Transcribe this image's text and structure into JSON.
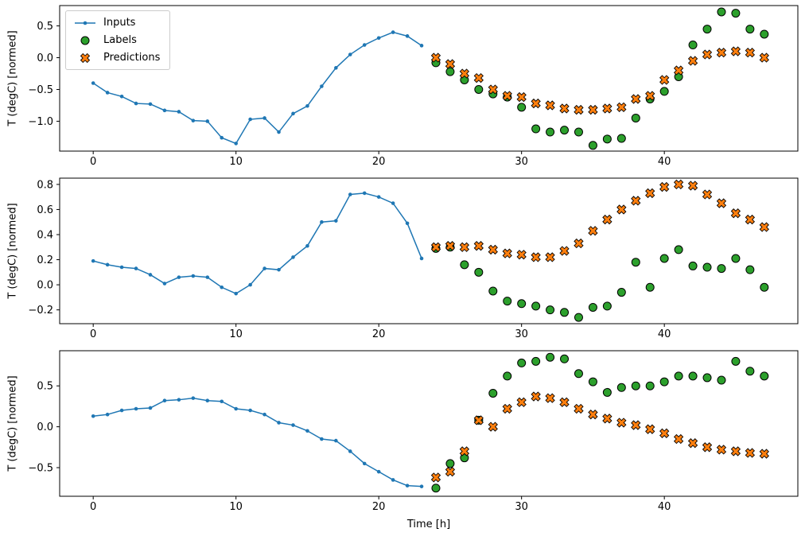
{
  "chart_data": [
    {
      "type": "line",
      "title": "",
      "ylabel": "T (degC) [normed]",
      "xlabel": "",
      "xlim": [
        -2.35,
        49.35
      ],
      "ylim": [
        -1.47,
        0.82
      ],
      "xticks": [
        0,
        10,
        20,
        30,
        40
      ],
      "yticks": [
        0.5,
        0.0,
        -0.5,
        -1.0
      ],
      "grid": false,
      "legend": {
        "position": "upper left",
        "visible": true
      },
      "series": [
        {
          "name": "Inputs",
          "kind": "line",
          "marker": "dot",
          "color": "#1f77b4",
          "x": [
            0,
            1,
            2,
            3,
            4,
            5,
            6,
            7,
            8,
            9,
            10,
            11,
            12,
            13,
            14,
            15,
            16,
            17,
            18,
            19,
            20,
            21,
            22,
            23
          ],
          "y": [
            -0.4,
            -0.55,
            -0.61,
            -0.72,
            -0.73,
            -0.83,
            -0.85,
            -0.99,
            -1.0,
            -1.26,
            -1.35,
            -0.97,
            -0.95,
            -1.17,
            -0.88,
            -0.76,
            -0.45,
            -0.16,
            0.05,
            0.2,
            0.31,
            0.4,
            0.34,
            0.19
          ]
        },
        {
          "name": "Labels",
          "kind": "scatter",
          "marker": "circle",
          "color": "#2ca02c",
          "edge": "#000000",
          "x": [
            24,
            25,
            26,
            27,
            28,
            29,
            30,
            31,
            32,
            33,
            34,
            35,
            36,
            37,
            38,
            39,
            40,
            41,
            42,
            43,
            44,
            45,
            46,
            47
          ],
          "y": [
            -0.08,
            -0.22,
            -0.35,
            -0.5,
            -0.57,
            -0.62,
            -0.78,
            -1.12,
            -1.17,
            -1.14,
            -1.17,
            -1.38,
            -1.28,
            -1.27,
            -0.95,
            -0.65,
            -0.53,
            -0.3,
            0.2,
            0.45,
            0.72,
            0.7,
            0.45,
            0.37
          ]
        },
        {
          "name": "Predictions",
          "kind": "scatter",
          "marker": "X",
          "color": "#ff7f0e",
          "edge": "#000000",
          "x": [
            24,
            25,
            26,
            27,
            28,
            29,
            30,
            31,
            32,
            33,
            34,
            35,
            36,
            37,
            38,
            39,
            40,
            41,
            42,
            43,
            44,
            45,
            46,
            47
          ],
          "y": [
            0.0,
            -0.1,
            -0.25,
            -0.32,
            -0.5,
            -0.6,
            -0.62,
            -0.72,
            -0.75,
            -0.8,
            -0.82,
            -0.82,
            -0.8,
            -0.78,
            -0.65,
            -0.6,
            -0.35,
            -0.2,
            -0.05,
            0.05,
            0.08,
            0.1,
            0.08,
            0.0
          ]
        }
      ]
    },
    {
      "type": "line",
      "title": "",
      "ylabel": "T (degC) [normed]",
      "xlabel": "",
      "xlim": [
        -2.35,
        49.35
      ],
      "ylim": [
        -0.31,
        0.85
      ],
      "xticks": [
        0,
        10,
        20,
        30,
        40
      ],
      "yticks": [
        0.8,
        0.6,
        0.4,
        0.2,
        0.0,
        -0.2
      ],
      "grid": false,
      "legend": {
        "position": "none",
        "visible": false
      },
      "series": [
        {
          "name": "Inputs",
          "kind": "line",
          "marker": "dot",
          "color": "#1f77b4",
          "x": [
            0,
            1,
            2,
            3,
            4,
            5,
            6,
            7,
            8,
            9,
            10,
            11,
            12,
            13,
            14,
            15,
            16,
            17,
            18,
            19,
            20,
            21,
            22,
            23
          ],
          "y": [
            0.19,
            0.16,
            0.14,
            0.13,
            0.08,
            0.01,
            0.06,
            0.07,
            0.06,
            -0.02,
            -0.07,
            0.0,
            0.13,
            0.12,
            0.22,
            0.31,
            0.5,
            0.51,
            0.72,
            0.73,
            0.7,
            0.65,
            0.49,
            0.21
          ]
        },
        {
          "name": "Labels",
          "kind": "scatter",
          "marker": "circle",
          "color": "#2ca02c",
          "edge": "#000000",
          "x": [
            24,
            25,
            26,
            27,
            28,
            29,
            30,
            31,
            32,
            33,
            34,
            35,
            36,
            37,
            38,
            39,
            40,
            41,
            42,
            43,
            44,
            45,
            46,
            47
          ],
          "y": [
            0.29,
            0.3,
            0.16,
            0.1,
            -0.05,
            -0.13,
            -0.15,
            -0.17,
            -0.2,
            -0.22,
            -0.26,
            -0.18,
            -0.17,
            -0.06,
            0.18,
            -0.02,
            0.21,
            0.28,
            0.15,
            0.14,
            0.13,
            0.21,
            0.12,
            -0.02
          ]
        },
        {
          "name": "Predictions",
          "kind": "scatter",
          "marker": "X",
          "color": "#ff7f0e",
          "edge": "#000000",
          "x": [
            24,
            25,
            26,
            27,
            28,
            29,
            30,
            31,
            32,
            33,
            34,
            35,
            36,
            37,
            38,
            39,
            40,
            41,
            42,
            43,
            44,
            45,
            46,
            47
          ],
          "y": [
            0.3,
            0.31,
            0.3,
            0.31,
            0.28,
            0.25,
            0.24,
            0.22,
            0.22,
            0.27,
            0.33,
            0.43,
            0.52,
            0.6,
            0.67,
            0.73,
            0.78,
            0.8,
            0.79,
            0.72,
            0.65,
            0.57,
            0.52,
            0.46
          ]
        }
      ]
    },
    {
      "type": "line",
      "title": "",
      "ylabel": "T (degC) [normed]",
      "xlabel": "Time [h]",
      "xlim": [
        -2.35,
        49.35
      ],
      "ylim": [
        -0.85,
        0.93
      ],
      "xticks": [
        0,
        10,
        20,
        30,
        40
      ],
      "yticks": [
        0.5,
        0.0,
        -0.5
      ],
      "grid": false,
      "legend": {
        "position": "none",
        "visible": false
      },
      "series": [
        {
          "name": "Inputs",
          "kind": "line",
          "marker": "dot",
          "color": "#1f77b4",
          "x": [
            0,
            1,
            2,
            3,
            4,
            5,
            6,
            7,
            8,
            9,
            10,
            11,
            12,
            13,
            14,
            15,
            16,
            17,
            18,
            19,
            20,
            21,
            22,
            23
          ],
          "y": [
            0.13,
            0.15,
            0.2,
            0.22,
            0.23,
            0.32,
            0.33,
            0.35,
            0.32,
            0.31,
            0.22,
            0.2,
            0.15,
            0.05,
            0.02,
            -0.05,
            -0.15,
            -0.17,
            -0.3,
            -0.45,
            -0.55,
            -0.65,
            -0.72,
            -0.73
          ]
        },
        {
          "name": "Labels",
          "kind": "scatter",
          "marker": "circle",
          "color": "#2ca02c",
          "edge": "#000000",
          "x": [
            24,
            25,
            26,
            27,
            28,
            29,
            30,
            31,
            32,
            33,
            34,
            35,
            36,
            37,
            38,
            39,
            40,
            41,
            42,
            43,
            44,
            45,
            46,
            47
          ],
          "y": [
            -0.75,
            -0.45,
            -0.38,
            0.08,
            0.41,
            0.62,
            0.78,
            0.8,
            0.85,
            0.83,
            0.65,
            0.55,
            0.42,
            0.48,
            0.5,
            0.5,
            0.55,
            0.62,
            0.62,
            0.6,
            0.57,
            0.8,
            0.68,
            0.62
          ]
        },
        {
          "name": "Predictions",
          "kind": "scatter",
          "marker": "X",
          "color": "#ff7f0e",
          "edge": "#000000",
          "x": [
            24,
            25,
            26,
            27,
            28,
            29,
            30,
            31,
            32,
            33,
            34,
            35,
            36,
            37,
            38,
            39,
            40,
            41,
            42,
            43,
            44,
            45,
            46,
            47
          ],
          "y": [
            -0.62,
            -0.55,
            -0.3,
            0.08,
            0.0,
            0.22,
            0.3,
            0.37,
            0.35,
            0.3,
            0.22,
            0.15,
            0.1,
            0.05,
            0.02,
            -0.03,
            -0.08,
            -0.15,
            -0.2,
            -0.25,
            -0.28,
            -0.3,
            -0.32,
            -0.33
          ]
        }
      ]
    }
  ]
}
